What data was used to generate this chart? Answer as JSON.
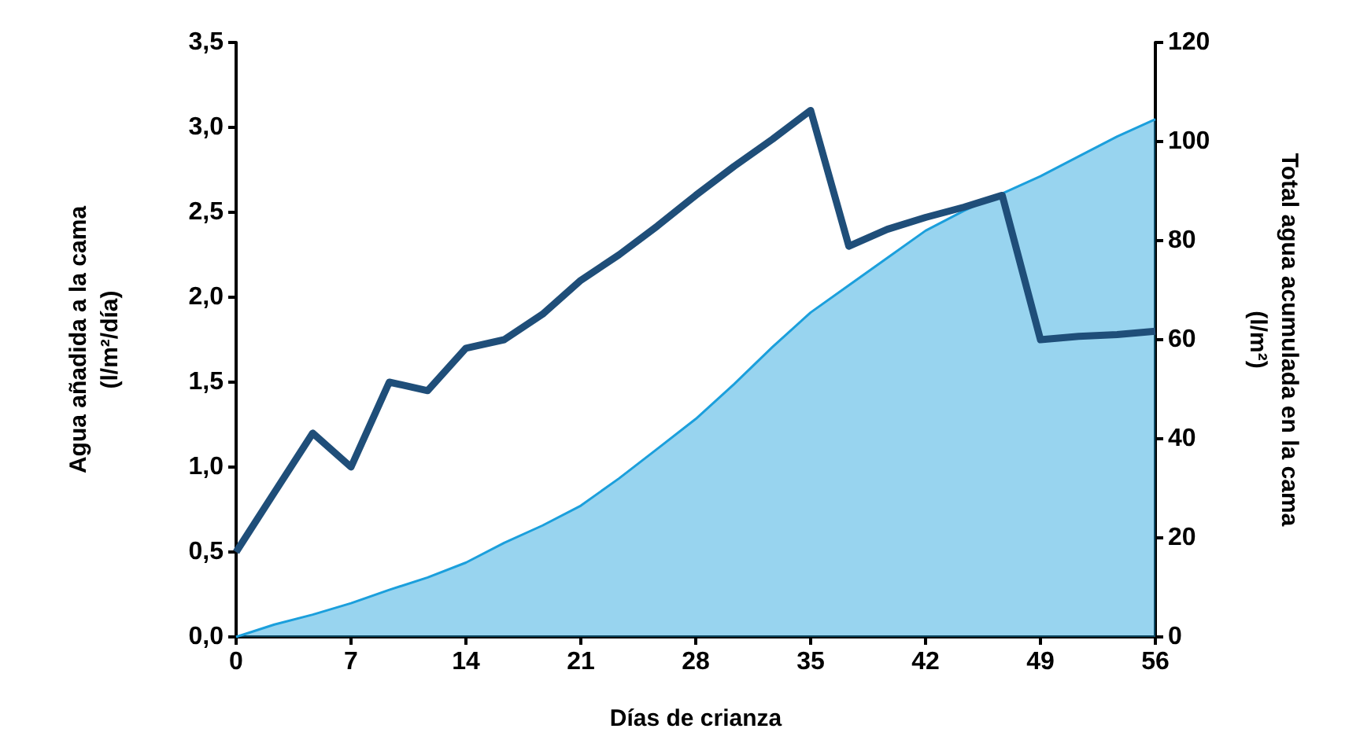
{
  "chart_data": {
    "type": "line",
    "xlabel": "Días de crianza",
    "ylabel": "Agua añadida a la cama\n(l/m²/día)",
    "y2label": "Total agua acumulada en la cama\n(l/m²)",
    "x": [
      0,
      2.33,
      4.67,
      7,
      9.33,
      11.67,
      14,
      16.33,
      18.67,
      21,
      23.33,
      25.67,
      28,
      30.33,
      32.67,
      35,
      37.33,
      39.67,
      42,
      44.33,
      46.67,
      49,
      51.33,
      53.67,
      56
    ],
    "series": [
      {
        "type": "area",
        "axis": "y2",
        "color": "#1b9fdc",
        "values": [
          0,
          2.5,
          4.5,
          6.8,
          9.5,
          12,
          15,
          19,
          22.5,
          26.5,
          32,
          38,
          44,
          51,
          58.5,
          65.5,
          71,
          76.5,
          82,
          86,
          89.5,
          93,
          97,
          101,
          104.5
        ]
      },
      {
        "axis": "y",
        "color": "#1f4e79",
        "values": [
          0.5,
          0.85,
          1.2,
          1.0,
          1.5,
          1.45,
          1.7,
          1.75,
          1.9,
          2.1,
          2.25,
          2.42,
          2.6,
          2.77,
          2.93,
          3.1,
          2.3,
          2.4,
          2.47,
          2.53,
          2.6,
          1.75,
          1.77,
          1.78,
          1.8
        ]
      }
    ],
    "xlim": [
      0,
      56
    ],
    "xticks": [
      0,
      7,
      14,
      21,
      28,
      35,
      42,
      49,
      56
    ],
    "ylim": [
      0,
      3.5
    ],
    "yticks": [
      {
        "value": 0,
        "label": "0,0"
      },
      {
        "value": 0.5,
        "label": "0,5"
      },
      {
        "value": 1,
        "label": "1,0"
      },
      {
        "value": 1.5,
        "label": "1,5"
      },
      {
        "value": 2,
        "label": "2,0"
      },
      {
        "value": 2.5,
        "label": "2,5"
      },
      {
        "value": 3,
        "label": "3,0"
      },
      {
        "value": 3.5,
        "label": "3,5"
      }
    ],
    "y2lim": [
      0,
      120
    ],
    "y2ticks": [
      0,
      20,
      40,
      60,
      80,
      100,
      120
    ],
    "grid": false,
    "marker": "none",
    "line_style": "solid"
  }
}
